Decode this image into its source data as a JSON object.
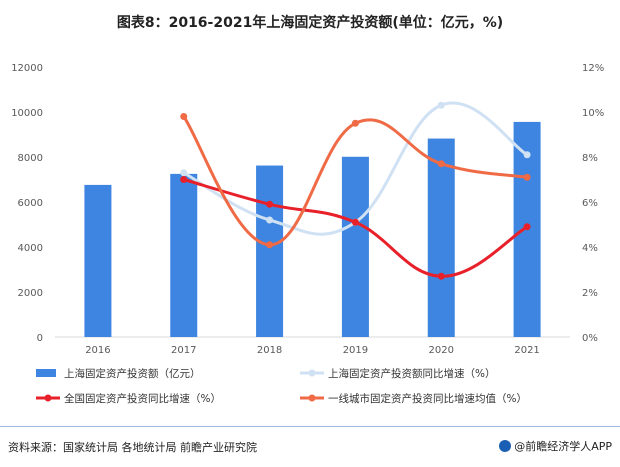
{
  "title": "图表8：2016-2021年上海固定资产投资额(单位：亿元，%)",
  "footer": {
    "source": "资料来源：国家统计局 各地统计局 前瞻产业研究院",
    "brand": "@前瞻经济学人APP"
  },
  "chart_data": {
    "type": "bar",
    "categories": [
      "2016",
      "2017",
      "2018",
      "2019",
      "2020",
      "2021"
    ],
    "y_left": {
      "ticks": [
        "0",
        "2000",
        "4000",
        "6000",
        "8000",
        "10000",
        "12000"
      ],
      "ylim": [
        0,
        12000
      ]
    },
    "y_right": {
      "ticks": [
        "0%",
        "2%",
        "4%",
        "6%",
        "8%",
        "10%",
        "12%"
      ],
      "ylim": [
        0,
        12
      ]
    },
    "grid": false,
    "legend_position": "bottom",
    "series": [
      {
        "name": "上海固定资产投资额（亿元）",
        "type": "bar",
        "axis": "left",
        "color": "#3d85e0",
        "values": [
          6760,
          7250,
          7620,
          8010,
          8820,
          9560
        ]
      },
      {
        "name": "上海固定资产投资额同比增速（%）",
        "type": "line",
        "axis": "right",
        "color": "#cfe1f3",
        "values": [
          null,
          7.3,
          5.2,
          5.1,
          10.3,
          8.1
        ]
      },
      {
        "name": "全国固定资产投资同比增速（%）",
        "type": "line",
        "axis": "right",
        "color": "#e8202a",
        "values": [
          null,
          7.0,
          5.9,
          5.1,
          2.7,
          4.9
        ]
      },
      {
        "name": "一线城市固定资产投资同比增速均值（%）",
        "type": "line",
        "axis": "right",
        "color": "#ef6a45",
        "values": [
          null,
          9.8,
          4.1,
          9.5,
          7.7,
          7.1
        ]
      }
    ]
  }
}
